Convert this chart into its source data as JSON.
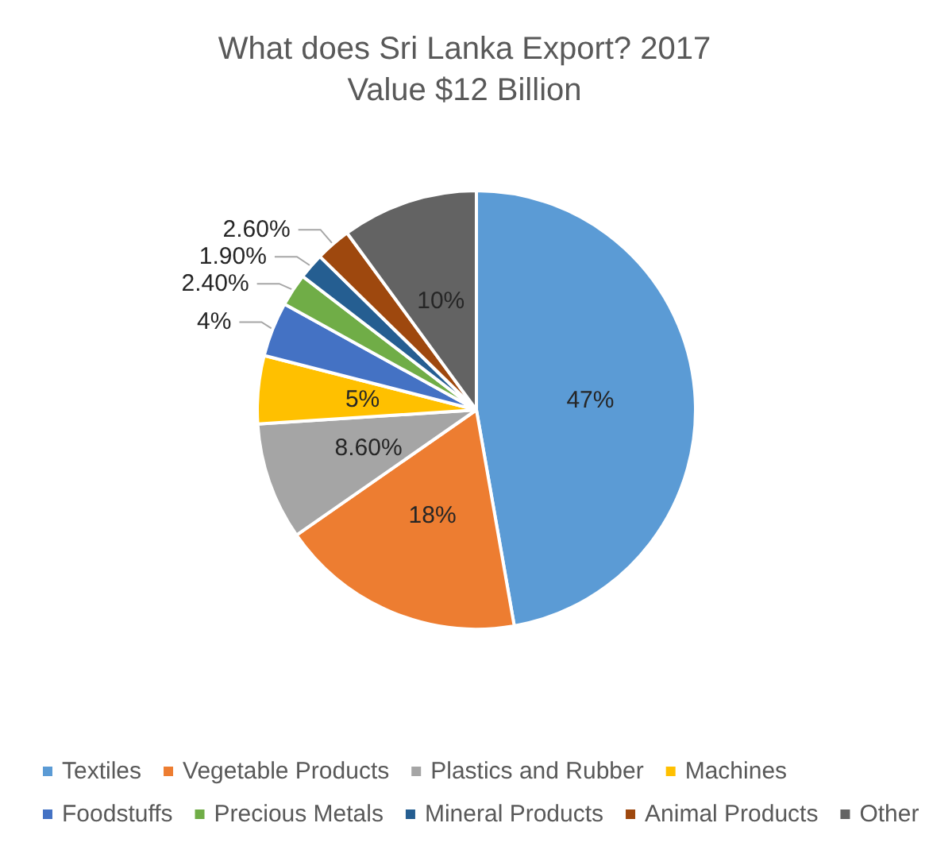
{
  "chart_data": {
    "type": "pie",
    "title": "What does Sri Lanka Export? 2017",
    "subtitle": "Value $12 Billion",
    "categories": [
      "Textiles",
      "Vegetable Products",
      "Plastics and Rubber",
      "Machines",
      "Foodstuffs",
      "Precious Metals",
      "Mineral Products",
      "Animal Products",
      "Other"
    ],
    "values": [
      47,
      18,
      8.6,
      5,
      4,
      2.4,
      1.9,
      2.6,
      10
    ],
    "value_labels": [
      "47%",
      "18%",
      "8.60%",
      "5%",
      "4%",
      "2.40%",
      "1.90%",
      "2.60%",
      "10%"
    ],
    "colors": [
      "#5b9bd5",
      "#ed7d31",
      "#a5a5a5",
      "#ffc000",
      "#4472c4",
      "#70ad47",
      "#255e91",
      "#9e480e",
      "#636363"
    ],
    "legend": "bottom"
  }
}
